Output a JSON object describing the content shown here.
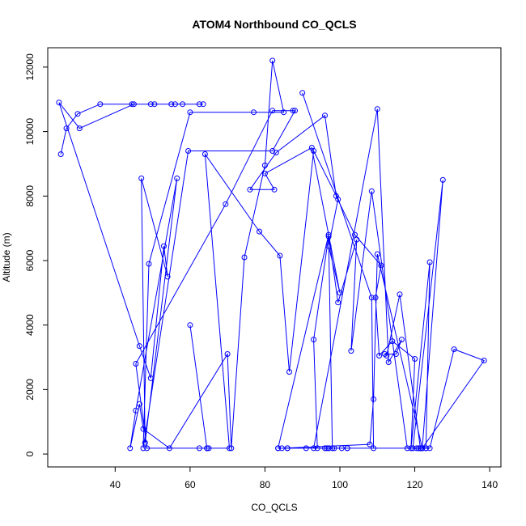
{
  "chart_data": {
    "type": "scatter",
    "title": "ATOM4 Northbound CO_QCLS",
    "xlabel": "CO_QCLS",
    "ylabel": "Altitude (m)",
    "xlim": [
      22,
      143
    ],
    "ylim": [
      -400,
      12600
    ],
    "xticks": [
      40,
      60,
      80,
      100,
      120,
      140
    ],
    "yticks": [
      0,
      2000,
      4000,
      6000,
      8000,
      10000,
      12000
    ],
    "grid": false,
    "connected": true,
    "color": "#0000ff",
    "series": [
      {
        "x": [
          25.5,
          27.0,
          30.0,
          36.0,
          44.5,
          49.5,
          50.5,
          56.0,
          58.0,
          63.5,
          62.5,
          55.0,
          45.0,
          30.5,
          25.0,
          46.5,
          49.5,
          53.0,
          54.0,
          47.0,
          48.0,
          56.5,
          45.5,
          44.0,
          46.5,
          47.5,
          54.5,
          70.0,
          71.0,
          74.5,
          80.0,
          82.0,
          85.0,
          77.0,
          60.0,
          49.0,
          47.5,
          59.5,
          82.0,
          88.0,
          87.5,
          82.0,
          69.5,
          45.5,
          48.5,
          62.5,
          64.5,
          60.0,
          64.5,
          65.0,
          70.5,
          64.0,
          78.5,
          84.0,
          86.5,
          93.0,
          99.5,
          97.0,
          100.0,
          92.5,
          80.0,
          82.5,
          76.0,
          83.0,
          96.0,
          99.0,
          104.0,
          111.0,
          109.5,
          110.5,
          114.0,
          120.0,
          119.0,
          124.0,
          123.0,
          119.5,
          127.5,
          122.0,
          102.0,
          98.0,
          97.0,
          93.0,
          94.0,
          96.0,
          98.5,
          97.0,
          83.5,
          86.0,
          97.0,
          93.0,
          110.0,
          113.0,
          116.5,
          115.0,
          112.0,
          112.5,
          116.0,
          121.5,
          121.0,
          118.0,
          108.5,
          103.0,
          104.5,
          99.5,
          97.0,
          83.5,
          86.0,
          84.5,
          108.0,
          109.0,
          110.0,
          122.0,
          123.0,
          102.0,
          100.5,
          96.5,
          91.0,
          120.5,
          124.0,
          130.5,
          138.5,
          122.0,
          121.5,
          109.0,
          108.5,
          90.0
        ],
        "y": [
          9300,
          10100,
          10550,
          10850,
          10850,
          10850,
          10850,
          10850,
          10850,
          10850,
          10850,
          10850,
          10850,
          10100,
          10900,
          3350,
          2350,
          6450,
          5500,
          8550,
          350,
          8550,
          1350,
          180,
          1550,
          780,
          180,
          3100,
          180,
          6100,
          8950,
          12200,
          10600,
          10600,
          10600,
          5900,
          180,
          9400,
          9400,
          10650,
          10650,
          10650,
          7750,
          2800,
          180,
          180,
          180,
          4000,
          180,
          180,
          180,
          9300,
          6900,
          6150,
          2550,
          9400,
          7900,
          6450,
          5000,
          9500,
          8700,
          8200,
          8200,
          9350,
          10500,
          8000,
          6800,
          5850,
          4850,
          3050,
          3500,
          2950,
          180,
          5950,
          180,
          180,
          8500,
          180,
          180,
          180,
          6750,
          3550,
          180,
          180,
          180,
          180,
          180,
          180,
          180,
          180,
          10700,
          2850,
          3550,
          3100,
          3100,
          3050,
          4950,
          180,
          180,
          180,
          8150,
          3200,
          6650,
          4700,
          6800,
          180,
          180,
          180,
          300,
          1700,
          6200,
          180,
          180,
          180,
          180,
          180,
          180,
          180,
          180,
          3250,
          2900,
          180,
          180,
          180,
          4850,
          11200
        ]
      }
    ]
  }
}
